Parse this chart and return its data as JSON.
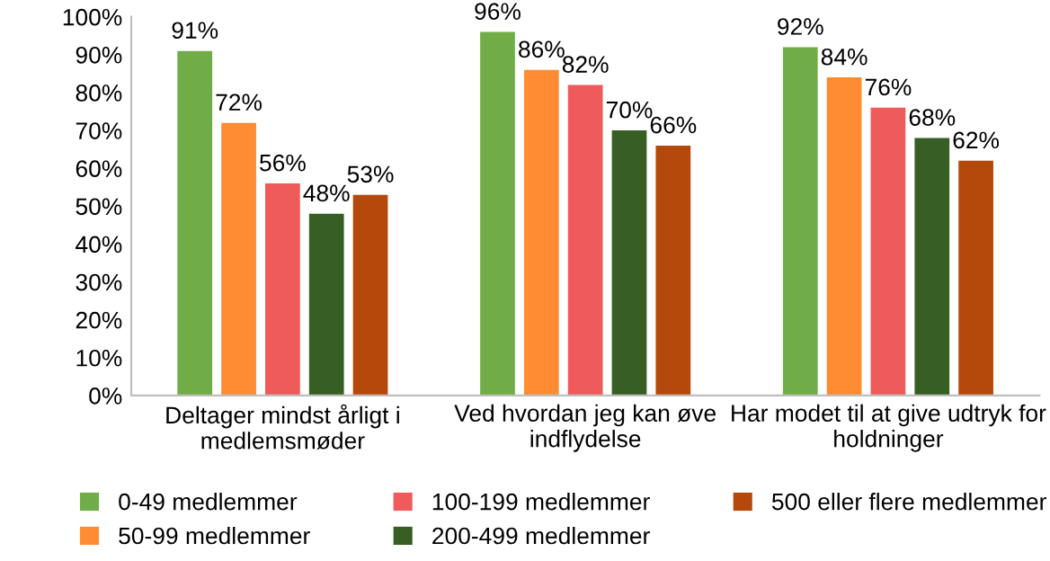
{
  "chart_data": {
    "type": "bar",
    "categories": [
      "Deltager mindst årligt i\nmedlemsmøder",
      "Ved hvordan jeg kan øve\nindflydelse",
      "Har modet til at give udtryk for\nholdninger"
    ],
    "series": [
      {
        "name": "0-49 medlemmer",
        "color": "#70ad47",
        "values": [
          91,
          96,
          92
        ],
        "value_labels": [
          "91%",
          "96%",
          "92%"
        ]
      },
      {
        "name": "50-99 medlemmer",
        "color": "#ff8b33",
        "values": [
          72,
          86,
          84
        ],
        "value_labels": [
          "72%",
          "86%",
          "84%"
        ]
      },
      {
        "name": "100-199 medlemmer",
        "color": "#ef5b5b",
        "values": [
          56,
          82,
          76
        ],
        "value_labels": [
          "56%",
          "82%",
          "76%"
        ]
      },
      {
        "name": "200-499 medlemmer",
        "color": "#375f23",
        "values": [
          48,
          70,
          68
        ],
        "value_labels": [
          "48%",
          "70%",
          "68%"
        ]
      },
      {
        "name": "500 eller flere medlemmer",
        "color": "#b5490c",
        "values": [
          53,
          66,
          62
        ],
        "value_labels": [
          "53%",
          "66%",
          "62%"
        ]
      }
    ],
    "ylim": [
      0,
      100
    ],
    "yticks": [
      {
        "value": 0,
        "label": "0%"
      },
      {
        "value": 10,
        "label": "10%"
      },
      {
        "value": 20,
        "label": "20%"
      },
      {
        "value": 30,
        "label": "30%"
      },
      {
        "value": 40,
        "label": "40%"
      },
      {
        "value": 50,
        "label": "50%"
      },
      {
        "value": 60,
        "label": "60%"
      },
      {
        "value": 70,
        "label": "70%"
      },
      {
        "value": 80,
        "label": "80%"
      },
      {
        "value": 90,
        "label": "90%"
      },
      {
        "value": 100,
        "label": "100%"
      }
    ],
    "legend": "bottom",
    "grid": false
  }
}
